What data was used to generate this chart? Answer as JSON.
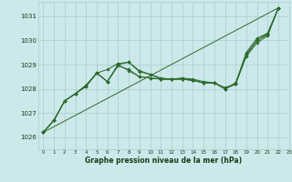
{
  "background_color": "#cce8ea",
  "grid_color": "#aacccc",
  "line_color": "#2d6a2d",
  "text_color": "#1a3a1a",
  "xlabel": "Graphe pression niveau de la mer (hPa)",
  "ylim": [
    1025.5,
    1031.6
  ],
  "xlim": [
    -0.5,
    23
  ],
  "yticks": [
    1026,
    1027,
    1028,
    1029,
    1030,
    1031
  ],
  "xticks": [
    0,
    1,
    2,
    3,
    4,
    5,
    6,
    7,
    8,
    9,
    10,
    11,
    12,
    13,
    14,
    15,
    16,
    17,
    18,
    19,
    20,
    21,
    22,
    23
  ],
  "line1": [
    1026.2,
    1026.7,
    1027.5,
    1027.8,
    1028.1,
    1028.65,
    1028.8,
    1029.05,
    1029.1,
    1028.7,
    1028.6,
    1028.45,
    1028.4,
    1028.45,
    1028.4,
    1028.3,
    1028.25,
    1028.05,
    1028.2,
    1029.45,
    1030.0,
    1030.3,
    1031.35
  ],
  "line2": [
    1026.2,
    1026.7,
    1027.5,
    1027.8,
    1028.1,
    1028.65,
    1028.3,
    1029.0,
    1028.75,
    1028.5,
    1028.45,
    1028.4,
    1028.4,
    1028.4,
    1028.35,
    1028.25,
    1028.25,
    1028.0,
    1028.25,
    1029.5,
    1030.1,
    1030.3,
    1031.35
  ],
  "line3": [
    1026.2,
    1026.7,
    1027.5,
    1027.8,
    1028.15,
    1028.65,
    1028.3,
    1028.95,
    1028.8,
    1028.5,
    1028.45,
    1028.4,
    1028.4,
    1028.4,
    1028.35,
    1028.25,
    1028.25,
    1028.0,
    1028.2,
    1029.4,
    1030.0,
    1030.25,
    1031.35
  ],
  "line4": [
    1026.2,
    1026.7,
    1027.5,
    1027.8,
    1028.15,
    1028.65,
    1028.3,
    1029.0,
    1029.1,
    1028.75,
    1028.6,
    1028.4,
    1028.4,
    1028.4,
    1028.35,
    1028.25,
    1028.25,
    1028.0,
    1028.2,
    1029.35,
    1029.9,
    1030.2,
    1031.35
  ],
  "trend_x": [
    0,
    22
  ],
  "trend_y": [
    1026.2,
    1031.35
  ],
  "figsize": [
    3.2,
    2.0
  ],
  "dpi": 100
}
